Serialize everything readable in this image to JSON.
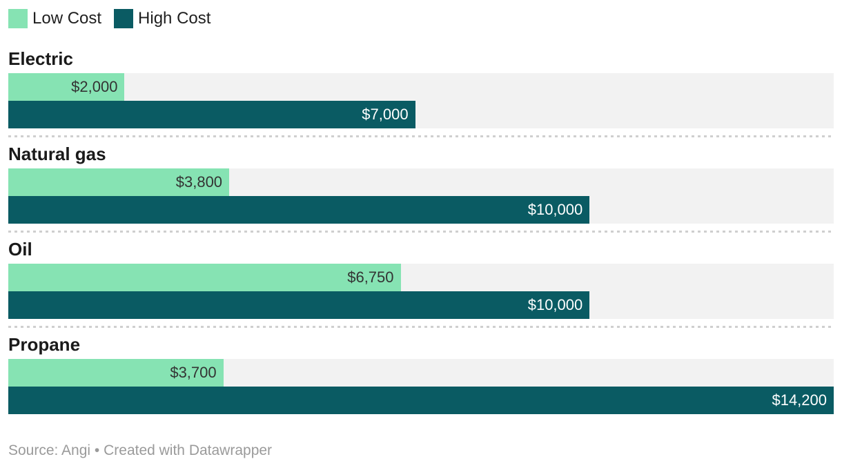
{
  "legend": {
    "items": [
      {
        "label": "Low Cost",
        "color": "#86e3b3"
      },
      {
        "label": "High Cost",
        "color": "#0a5b63"
      }
    ]
  },
  "chart_data": {
    "type": "bar",
    "orientation": "horizontal",
    "title": "",
    "xlabel": "",
    "ylabel": "",
    "xlim": [
      0,
      14200
    ],
    "grid": false,
    "legend_position": "top",
    "categories": [
      "Electric",
      "Natural gas",
      "Oil",
      "Propane"
    ],
    "series": [
      {
        "name": "Low Cost",
        "color": "#86e3b3",
        "values": [
          2000,
          3800,
          6750,
          3700
        ],
        "labels": [
          "$2,000",
          "$3,800",
          "$6,750",
          "$3,700"
        ]
      },
      {
        "name": "High Cost",
        "color": "#0a5b63",
        "values": [
          7000,
          10000,
          10000,
          14200
        ],
        "labels": [
          "$7,000",
          "$10,000",
          "$10,000",
          "$14,200"
        ]
      }
    ],
    "style": {
      "background": "#ffffff",
      "track_color": "#f2f2f2",
      "divider_color": "#cfcfcf",
      "category_color": "#1a1a1a",
      "legend_color": "#1f1f1f",
      "value_label_dark": "#333333",
      "value_label_light": "#ffffff",
      "footer_color": "#9a9a9a"
    }
  },
  "footer": {
    "text": "Source: Angi • Created with Datawrapper"
  }
}
